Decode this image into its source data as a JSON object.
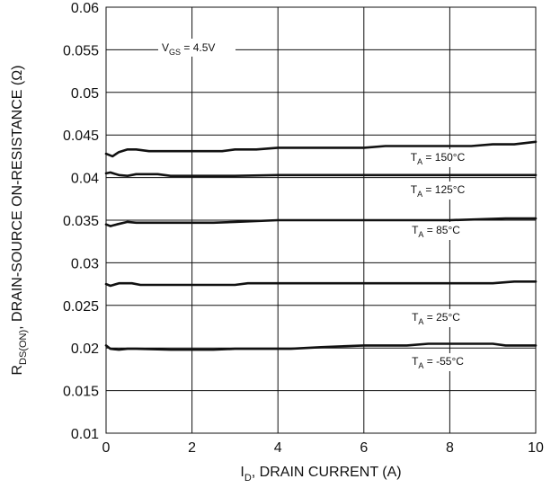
{
  "chart_data": {
    "type": "line",
    "xlabel": {
      "main": "I",
      "sub": "D",
      "rest": ", DRAIN CURRENT (A)"
    },
    "ylabel": {
      "main": "R",
      "sub": "DS(ON)",
      "rest": ", DRAIN-SOURCE ON-RESISTANCE (Ω)"
    },
    "xlim": [
      0,
      10
    ],
    "ylim": [
      0.01,
      0.06
    ],
    "xticks": [
      0,
      2,
      4,
      6,
      8,
      10
    ],
    "xtick_labels": [
      "0",
      "2",
      "4",
      "6",
      "8",
      "10"
    ],
    "yticks": [
      0.01,
      0.015,
      0.02,
      0.025,
      0.03,
      0.035,
      0.04,
      0.045,
      0.05,
      0.055,
      0.06
    ],
    "ytick_labels": [
      "0.01",
      "0.015",
      "0.02",
      "0.025",
      "0.03",
      "0.035",
      "0.04",
      "0.045",
      "0.05",
      "0.055",
      "0.06"
    ],
    "grid": true,
    "condition": {
      "main": "V",
      "sub": "GS",
      "rest": " = 4.5V"
    },
    "series": [
      {
        "name": "T_A = 150°C",
        "label_main": "T",
        "label_sub": "A",
        "label_rest": " = 150°C",
        "x": [
          0,
          0.15,
          0.3,
          0.5,
          0.7,
          1,
          2,
          2.7,
          3,
          3.5,
          4,
          5,
          6,
          6.5,
          8,
          8.5,
          9,
          9.5,
          10
        ],
        "y": [
          0.0428,
          0.0425,
          0.043,
          0.0433,
          0.0433,
          0.0431,
          0.0431,
          0.0431,
          0.0433,
          0.0433,
          0.0435,
          0.0435,
          0.0435,
          0.0437,
          0.0437,
          0.0437,
          0.0439,
          0.0439,
          0.0442
        ]
      },
      {
        "name": "T_A = 125°C",
        "label_main": "T",
        "label_sub": "A",
        "label_rest": " = 125°C",
        "x": [
          0,
          0.1,
          0.3,
          0.5,
          0.7,
          1.2,
          1.5,
          3,
          4,
          6,
          8,
          10
        ],
        "y": [
          0.0405,
          0.0406,
          0.0403,
          0.0402,
          0.0404,
          0.0404,
          0.0402,
          0.0402,
          0.0403,
          0.0403,
          0.0403,
          0.0403
        ]
      },
      {
        "name": "T_A = 85°C",
        "label_main": "T",
        "label_sub": "A",
        "label_rest": " = 85°C",
        "x": [
          0,
          0.1,
          0.25,
          0.5,
          0.7,
          2.5,
          3,
          4,
          6,
          8,
          9.3,
          10
        ],
        "y": [
          0.0345,
          0.0343,
          0.0345,
          0.0348,
          0.0347,
          0.0347,
          0.0348,
          0.035,
          0.035,
          0.035,
          0.0352,
          0.0352
        ]
      },
      {
        "name": "T_A = 25°C",
        "label_main": "T",
        "label_sub": "A",
        "label_rest": " = 25°C",
        "x": [
          0,
          0.1,
          0.3,
          0.6,
          0.8,
          3,
          3.3,
          6,
          9,
          9.5,
          10
        ],
        "y": [
          0.0275,
          0.0273,
          0.0276,
          0.0276,
          0.0274,
          0.0274,
          0.0276,
          0.0276,
          0.0276,
          0.0278,
          0.0278
        ]
      },
      {
        "name": "T_A = -55°C",
        "label_main": "T",
        "label_sub": "A",
        "label_rest": " = -55°C",
        "x": [
          0,
          0.1,
          0.3,
          0.5,
          0.7,
          1.5,
          2.5,
          3,
          4.3,
          5,
          6,
          7,
          7.5,
          9,
          9.3,
          10
        ],
        "y": [
          0.0203,
          0.0199,
          0.0198,
          0.0199,
          0.0199,
          0.0198,
          0.0198,
          0.0199,
          0.0199,
          0.0201,
          0.0203,
          0.0203,
          0.0205,
          0.0205,
          0.0203,
          0.0203
        ]
      }
    ]
  }
}
